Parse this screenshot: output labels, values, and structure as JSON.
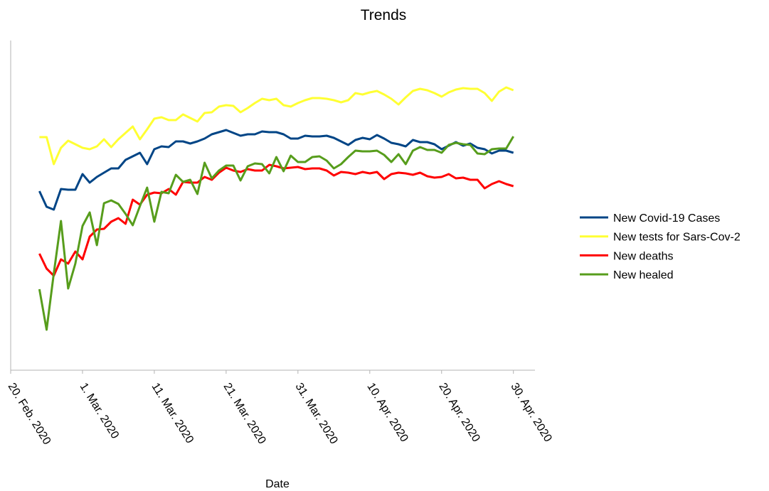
{
  "chart_data": {
    "type": "line",
    "title": "Trends",
    "x_label": "Date",
    "x": [
      "2020-02-24",
      "2020-02-25",
      "2020-02-26",
      "2020-02-27",
      "2020-02-28",
      "2020-02-29",
      "2020-03-01",
      "2020-03-02",
      "2020-03-03",
      "2020-03-04",
      "2020-03-05",
      "2020-03-06",
      "2020-03-07",
      "2020-03-08",
      "2020-03-09",
      "2020-03-10",
      "2020-03-11",
      "2020-03-12",
      "2020-03-13",
      "2020-03-14",
      "2020-03-15",
      "2020-03-16",
      "2020-03-17",
      "2020-03-18",
      "2020-03-19",
      "2020-03-20",
      "2020-03-21",
      "2020-03-22",
      "2020-03-23",
      "2020-03-24",
      "2020-03-25",
      "2020-03-26",
      "2020-03-27",
      "2020-03-28",
      "2020-03-29",
      "2020-03-30",
      "2020-03-31",
      "2020-04-01",
      "2020-04-02",
      "2020-04-03",
      "2020-04-04",
      "2020-04-05",
      "2020-04-06",
      "2020-04-07",
      "2020-04-08",
      "2020-04-09",
      "2020-04-10",
      "2020-04-11",
      "2020-04-12",
      "2020-04-13",
      "2020-04-14",
      "2020-04-15",
      "2020-04-16",
      "2020-04-17",
      "2020-04-18",
      "2020-04-19",
      "2020-04-20",
      "2020-04-21",
      "2020-04-22",
      "2020-04-23",
      "2020-04-24",
      "2020-04-25",
      "2020-04-26",
      "2020-04-27",
      "2020-04-28",
      "2020-04-29",
      "2020-04-30"
    ],
    "xlim": [
      "2020-02-20",
      "2020-05-03"
    ],
    "xticks": [
      {
        "value": "2020-02-20",
        "label": "20. Feb. 2020"
      },
      {
        "value": "2020-03-01",
        "label": "1. Mar. 2020"
      },
      {
        "value": "2020-03-11",
        "label": "11. Mar. 2020"
      },
      {
        "value": "2020-03-21",
        "label": "21. Mar. 2020"
      },
      {
        "value": "2020-03-31",
        "label": "31. Mar. 2020"
      },
      {
        "value": "2020-04-10",
        "label": "10. Apr. 2020"
      },
      {
        "value": "2020-04-20",
        "label": "20. Apr. 2020"
      },
      {
        "value": "2020-04-30",
        "label": "30. Apr. 2020"
      }
    ],
    "ylim": [
      0,
      464
    ],
    "legend": "right",
    "series": [
      {
        "name": "New Covid-19 Cases",
        "color": "#004586",
        "values": [
          252,
          230,
          226,
          255,
          254,
          254,
          276,
          264,
          272,
          278,
          284,
          284,
          296,
          301,
          306,
          290,
          311,
          315,
          314,
          322,
          322,
          319,
          322,
          326,
          332,
          335,
          338,
          334,
          330,
          332,
          332,
          336,
          335,
          335,
          332,
          326,
          326,
          330,
          329,
          329,
          330,
          327,
          322,
          317,
          324,
          327,
          325,
          331,
          326,
          320,
          318,
          315,
          324,
          321,
          321,
          318,
          311,
          316,
          321,
          316,
          319,
          313,
          311,
          305,
          309,
          309,
          306
        ]
      },
      {
        "name": "New tests for Sars-Cov-2",
        "color": "#ffff33",
        "values": [
          328,
          328,
          290,
          313,
          323,
          318,
          313,
          311,
          315,
          325,
          314,
          325,
          334,
          343,
          325,
          339,
          354,
          356,
          352,
          352,
          360,
          355,
          350,
          362,
          363,
          371,
          373,
          372,
          363,
          369,
          376,
          382,
          380,
          382,
          373,
          371,
          376,
          380,
          383,
          383,
          382,
          380,
          377,
          380,
          390,
          388,
          391,
          393,
          388,
          382,
          374,
          384,
          393,
          396,
          394,
          390,
          385,
          391,
          395,
          397,
          396,
          396,
          390,
          379,
          392,
          398,
          394
        ]
      },
      {
        "name": "New deaths",
        "color": "#ff0000",
        "values": [
          164,
          143,
          133,
          156,
          150,
          167,
          156,
          188,
          198,
          199,
          209,
          214,
          206,
          240,
          233,
          247,
          250,
          249,
          255,
          247,
          265,
          264,
          264,
          272,
          268,
          278,
          285,
          281,
          279,
          283,
          281,
          281,
          289,
          287,
          284,
          285,
          286,
          283,
          284,
          284,
          281,
          274,
          279,
          278,
          276,
          279,
          277,
          279,
          269,
          276,
          278,
          277,
          275,
          278,
          273,
          271,
          272,
          276,
          270,
          271,
          268,
          268,
          256,
          262,
          266,
          262,
          259
        ]
      },
      {
        "name": "New healed",
        "color": "#579d1c",
        "values": [
          114,
          57,
          136,
          210,
          115,
          150,
          203,
          222,
          176,
          235,
          239,
          234,
          220,
          204,
          231,
          257,
          209,
          251,
          249,
          275,
          265,
          268,
          248,
          292,
          270,
          281,
          288,
          288,
          267,
          287,
          291,
          290,
          277,
          300,
          280,
          302,
          293,
          293,
          300,
          301,
          295,
          284,
          290,
          300,
          309,
          308,
          308,
          309,
          303,
          293,
          304,
          290,
          309,
          314,
          310,
          310,
          306,
          317,
          320,
          318,
          317,
          305,
          304,
          311,
          312,
          312,
          329
        ]
      }
    ]
  }
}
